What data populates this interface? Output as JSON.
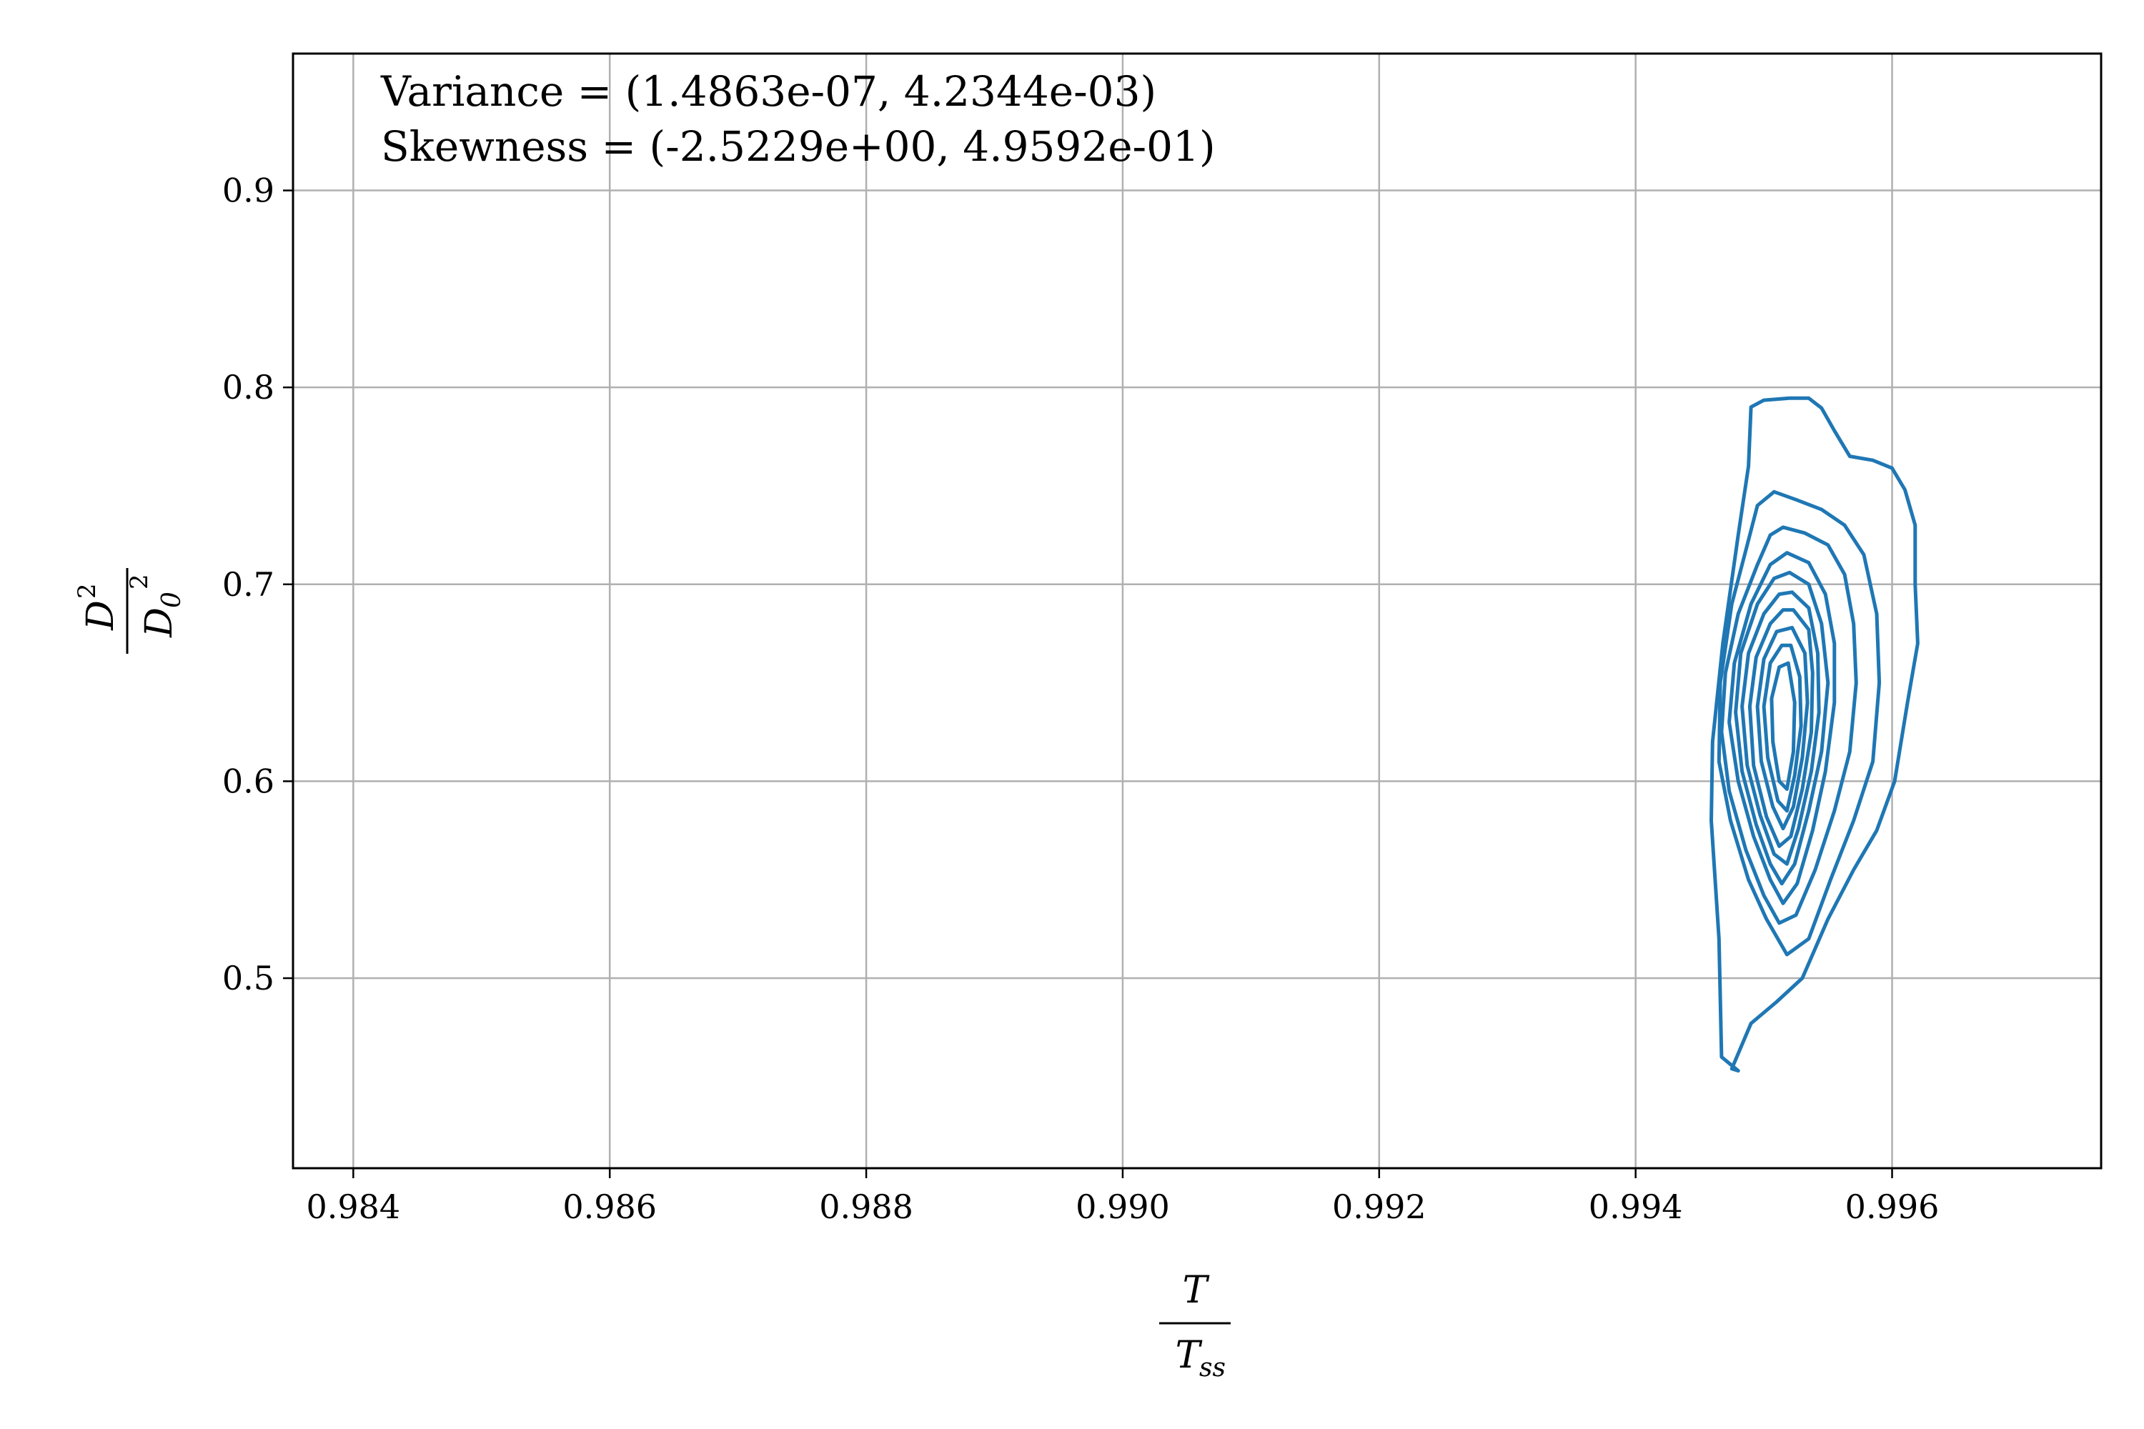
{
  "chart_data": {
    "type": "contour",
    "annotations": [
      "Variance = (1.4863e-07, 4.2344e-03)",
      "Skewness = (-2.5229e+00, 4.9592e-01)"
    ],
    "xlabel": {
      "numerator": "T",
      "denominator": "T",
      "denominator_subscript": "ss"
    },
    "ylabel": {
      "numerator": "D",
      "numerator_superscript": "2",
      "denominator": "D",
      "denominator_subscript": "0",
      "denominator_superscript": "2"
    },
    "xlim": [
      0.98353,
      0.99763
    ],
    "ylim": [
      0.4035,
      0.9695
    ],
    "xticks": [
      0.984,
      0.986,
      0.988,
      0.99,
      0.992,
      0.994,
      0.996
    ],
    "xtick_labels": [
      "0.984",
      "0.986",
      "0.988",
      "0.990",
      "0.992",
      "0.994",
      "0.996"
    ],
    "yticks": [
      0.5,
      0.6,
      0.7,
      0.8,
      0.9
    ],
    "ytick_labels": [
      "0.5",
      "0.6",
      "0.7",
      "0.8",
      "0.9"
    ],
    "grid": true,
    "series_color": "#1f77b4",
    "contours": [
      {
        "level": 1,
        "points": [
          [
            0.9952,
            0.7945
          ],
          [
            0.99535,
            0.7945
          ],
          [
            0.99545,
            0.7895
          ],
          [
            0.99555,
            0.778
          ],
          [
            0.99567,
            0.765
          ],
          [
            0.99585,
            0.763
          ],
          [
            0.996,
            0.759
          ],
          [
            0.9961,
            0.748
          ],
          [
            0.99618,
            0.73
          ],
          [
            0.99618,
            0.7
          ],
          [
            0.9962,
            0.67
          ],
          [
            0.99612,
            0.64
          ],
          [
            0.99602,
            0.6
          ],
          [
            0.99588,
            0.575
          ],
          [
            0.9957,
            0.555
          ],
          [
            0.9955,
            0.53
          ],
          [
            0.9953,
            0.5
          ],
          [
            0.9951,
            0.488
          ],
          [
            0.9949,
            0.477
          ],
          [
            0.99475,
            0.454
          ],
          [
            0.9948,
            0.453
          ],
          [
            0.99467,
            0.46
          ],
          [
            0.99465,
            0.52
          ],
          [
            0.99459,
            0.58
          ],
          [
            0.9946,
            0.62
          ],
          [
            0.99468,
            0.67
          ],
          [
            0.9948,
            0.725
          ],
          [
            0.99488,
            0.76
          ],
          [
            0.9949,
            0.79
          ],
          [
            0.995,
            0.7935
          ],
          [
            0.9952,
            0.7945
          ]
        ]
      },
      {
        "level": 2,
        "points": [
          [
            0.99508,
            0.747
          ],
          [
            0.99525,
            0.743
          ],
          [
            0.99545,
            0.738
          ],
          [
            0.99563,
            0.73
          ],
          [
            0.99578,
            0.715
          ],
          [
            0.99588,
            0.685
          ],
          [
            0.9959,
            0.65
          ],
          [
            0.99585,
            0.61
          ],
          [
            0.9957,
            0.58
          ],
          [
            0.99552,
            0.55
          ],
          [
            0.99535,
            0.52
          ],
          [
            0.99518,
            0.512
          ],
          [
            0.99502,
            0.53
          ],
          [
            0.99488,
            0.55
          ],
          [
            0.99474,
            0.58
          ],
          [
            0.99465,
            0.61
          ],
          [
            0.99466,
            0.65
          ],
          [
            0.99475,
            0.69
          ],
          [
            0.99487,
            0.72
          ],
          [
            0.99495,
            0.74
          ],
          [
            0.99508,
            0.747
          ]
        ]
      },
      {
        "level": 3,
        "points": [
          [
            0.99515,
            0.729
          ],
          [
            0.99532,
            0.726
          ],
          [
            0.9955,
            0.72
          ],
          [
            0.99563,
            0.705
          ],
          [
            0.9957,
            0.68
          ],
          [
            0.99572,
            0.65
          ],
          [
            0.99567,
            0.615
          ],
          [
            0.99555,
            0.585
          ],
          [
            0.9954,
            0.555
          ],
          [
            0.99525,
            0.532
          ],
          [
            0.99512,
            0.528
          ],
          [
            0.995,
            0.542
          ],
          [
            0.99486,
            0.565
          ],
          [
            0.99473,
            0.595
          ],
          [
            0.99467,
            0.625
          ],
          [
            0.9947,
            0.655
          ],
          [
            0.9948,
            0.685
          ],
          [
            0.99495,
            0.71
          ],
          [
            0.99505,
            0.725
          ],
          [
            0.99515,
            0.729
          ]
        ]
      },
      {
        "level": 4,
        "points": [
          [
            0.99518,
            0.716
          ],
          [
            0.99535,
            0.711
          ],
          [
            0.99548,
            0.695
          ],
          [
            0.99555,
            0.67
          ],
          [
            0.99555,
            0.64
          ],
          [
            0.99548,
            0.605
          ],
          [
            0.99538,
            0.575
          ],
          [
            0.99526,
            0.548
          ],
          [
            0.99515,
            0.538
          ],
          [
            0.99505,
            0.55
          ],
          [
            0.99492,
            0.572
          ],
          [
            0.9948,
            0.6
          ],
          [
            0.99473,
            0.63
          ],
          [
            0.99477,
            0.66
          ],
          [
            0.9949,
            0.69
          ],
          [
            0.99505,
            0.71
          ],
          [
            0.99518,
            0.716
          ]
        ]
      },
      {
        "level": 5,
        "points": [
          [
            0.9952,
            0.706
          ],
          [
            0.99535,
            0.7
          ],
          [
            0.99545,
            0.68
          ],
          [
            0.9955,
            0.65
          ],
          [
            0.99545,
            0.615
          ],
          [
            0.99535,
            0.585
          ],
          [
            0.99524,
            0.558
          ],
          [
            0.99514,
            0.548
          ],
          [
            0.99505,
            0.558
          ],
          [
            0.99494,
            0.578
          ],
          [
            0.99483,
            0.605
          ],
          [
            0.99478,
            0.635
          ],
          [
            0.99482,
            0.665
          ],
          [
            0.99495,
            0.69
          ],
          [
            0.99508,
            0.703
          ],
          [
            0.9952,
            0.706
          ]
        ]
      },
      {
        "level": 6,
        "points": [
          [
            0.99522,
            0.696
          ],
          [
            0.99535,
            0.688
          ],
          [
            0.99542,
            0.665
          ],
          [
            0.99543,
            0.635
          ],
          [
            0.99537,
            0.605
          ],
          [
            0.99527,
            0.576
          ],
          [
            0.99518,
            0.558
          ],
          [
            0.99508,
            0.563
          ],
          [
            0.99497,
            0.583
          ],
          [
            0.99487,
            0.608
          ],
          [
            0.99483,
            0.638
          ],
          [
            0.99488,
            0.665
          ],
          [
            0.995,
            0.685
          ],
          [
            0.99512,
            0.695
          ],
          [
            0.99522,
            0.696
          ]
        ]
      },
      {
        "level": 7,
        "points": [
          [
            0.99523,
            0.687
          ],
          [
            0.99535,
            0.677
          ],
          [
            0.99538,
            0.655
          ],
          [
            0.99537,
            0.625
          ],
          [
            0.9953,
            0.596
          ],
          [
            0.99521,
            0.572
          ],
          [
            0.99512,
            0.567
          ],
          [
            0.99502,
            0.582
          ],
          [
            0.99492,
            0.608
          ],
          [
            0.99489,
            0.638
          ],
          [
            0.99494,
            0.663
          ],
          [
            0.99505,
            0.68
          ],
          [
            0.99515,
            0.687
          ],
          [
            0.99523,
            0.687
          ]
        ]
      },
      {
        "level": 8,
        "points": [
          [
            0.99522,
            0.678
          ],
          [
            0.99532,
            0.665
          ],
          [
            0.99534,
            0.64
          ],
          [
            0.9953,
            0.612
          ],
          [
            0.99523,
            0.587
          ],
          [
            0.99515,
            0.576
          ],
          [
            0.99507,
            0.587
          ],
          [
            0.99498,
            0.61
          ],
          [
            0.99495,
            0.638
          ],
          [
            0.995,
            0.662
          ],
          [
            0.9951,
            0.676
          ],
          [
            0.99522,
            0.678
          ]
        ]
      },
      {
        "level": 9,
        "points": [
          [
            0.99521,
            0.669
          ],
          [
            0.99528,
            0.653
          ],
          [
            0.99529,
            0.628
          ],
          [
            0.99524,
            0.603
          ],
          [
            0.99518,
            0.585
          ],
          [
            0.99511,
            0.59
          ],
          [
            0.99503,
            0.612
          ],
          [
            0.995,
            0.638
          ],
          [
            0.99505,
            0.66
          ],
          [
            0.99514,
            0.669
          ],
          [
            0.99521,
            0.669
          ]
        ]
      },
      {
        "level": 10,
        "points": [
          [
            0.99519,
            0.66
          ],
          [
            0.99524,
            0.64
          ],
          [
            0.99523,
            0.615
          ],
          [
            0.99518,
            0.596
          ],
          [
            0.99512,
            0.6
          ],
          [
            0.99507,
            0.62
          ],
          [
            0.99506,
            0.642
          ],
          [
            0.99512,
            0.658
          ],
          [
            0.99519,
            0.66
          ]
        ]
      }
    ]
  }
}
